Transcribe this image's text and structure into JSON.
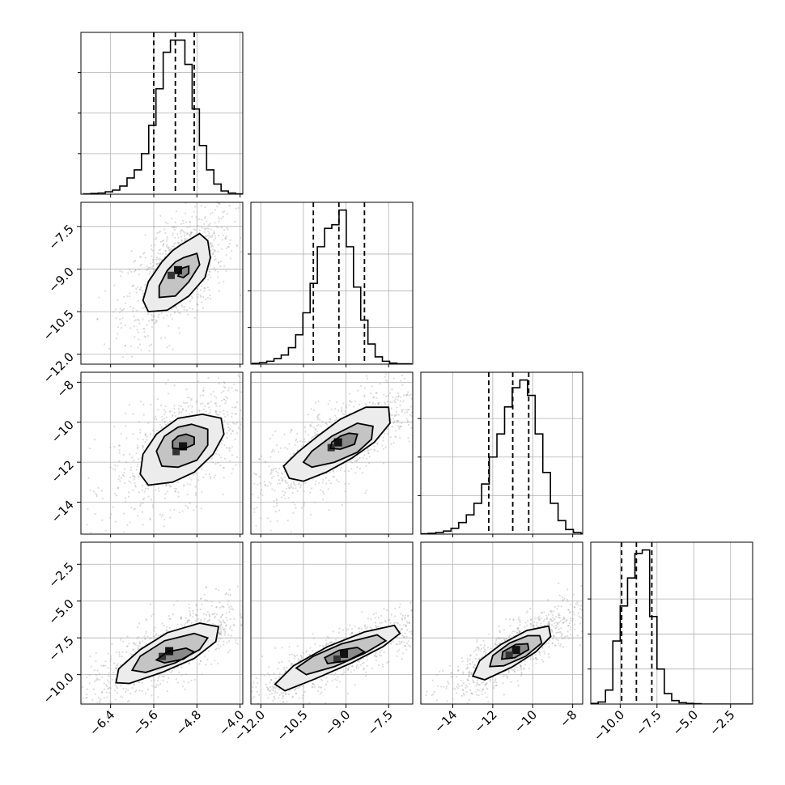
{
  "chart_data": {
    "type": "corner",
    "n_params": 4,
    "params": [
      {
        "median": -5.2,
        "q16": -5.6,
        "q84": -4.85,
        "hist_range": [
          -6.9,
          -3.95
        ],
        "plot_range": [
          -6.95,
          -3.95
        ],
        "scatter_range": [
          -6.95,
          -3.95
        ],
        "ticks": [
          -6.4,
          -5.6,
          -4.8,
          -4.0
        ],
        "tick_labels": [
          "−6.4",
          "−5.6",
          "−4.8",
          "−4.0"
        ]
      },
      {
        "median": -9.25,
        "q16": -10.15,
        "q84": -8.35,
        "hist_range": [
          -12.3,
          -6.7
        ],
        "plot_range": [
          -12.35,
          -6.65
        ],
        "scatter_range": [
          -12.2,
          -6.9
        ],
        "ticks": [
          -12.0,
          -10.5,
          -9.0,
          -7.5
        ],
        "tick_labels": [
          "−12.0",
          "−10.5",
          "−9.0",
          "−7.5"
        ]
      },
      {
        "median": -11.0,
        "q16": -12.2,
        "q84": -10.2,
        "hist_range": [
          -16.0,
          -7.2
        ],
        "plot_range": [
          -15.6,
          -7.5
        ],
        "scatter_range": [
          -15.3,
          -7.9
        ],
        "ticks": [
          -14,
          -12,
          -10,
          -8
        ],
        "tick_labels": [
          "−14",
          "−12",
          "−10",
          "−8"
        ]
      },
      {
        "median": -8.9,
        "q16": -9.9,
        "q84": -7.85,
        "hist_range": [
          -12.0,
          -1.0
        ],
        "plot_range": [
          -12.0,
          -1.0
        ],
        "scatter_range": [
          -11.9,
          -0.3
        ],
        "ticks": [
          -10.0,
          -7.5,
          -5.0,
          -2.5
        ],
        "tick_labels": [
          "−10.0",
          "−7.5",
          "−5.0",
          "−2.5"
        ]
      }
    ],
    "histograms": [
      [
        1,
        2,
        3,
        6,
        10,
        20,
        40,
        60,
        100,
        170,
        260,
        350,
        380,
        380,
        320,
        210,
        120,
        60,
        25,
        8,
        3,
        1
      ],
      [
        2,
        4,
        8,
        15,
        25,
        45,
        80,
        140,
        220,
        320,
        370,
        380,
        420,
        320,
        210,
        120,
        55,
        20,
        8,
        3,
        1,
        1
      ],
      [
        1,
        1,
        2,
        4,
        8,
        15,
        30,
        50,
        80,
        130,
        200,
        260,
        330,
        380,
        400,
        360,
        260,
        160,
        80,
        35,
        12,
        4,
        1
      ],
      [
        2,
        6,
        40,
        180,
        280,
        360,
        430,
        440,
        250,
        100,
        30,
        10,
        4,
        2,
        1,
        0,
        0,
        0,
        0,
        0,
        0,
        0
      ]
    ],
    "hist_density_ticks": [
      100,
      200,
      300
    ],
    "pairs": [
      {
        "row": 1,
        "col": 0,
        "contours": [
          [
            [
              -5.1,
              -8.15
            ],
            [
              -4.75,
              -7.75
            ],
            [
              -4.6,
              -8.0
            ],
            [
              -4.55,
              -8.6
            ],
            [
              -4.65,
              -9.3
            ],
            [
              -4.95,
              -9.95
            ],
            [
              -5.35,
              -10.45
            ],
            [
              -5.7,
              -10.5
            ],
            [
              -5.8,
              -10.1
            ],
            [
              -5.7,
              -9.45
            ],
            [
              -5.45,
              -8.75
            ],
            [
              -5.25,
              -8.35
            ],
            [
              -5.1,
              -8.15
            ]
          ],
          [
            [
              -5.05,
              -8.6
            ],
            [
              -4.8,
              -8.45
            ],
            [
              -4.75,
              -8.85
            ],
            [
              -4.95,
              -9.45
            ],
            [
              -5.2,
              -9.95
            ],
            [
              -5.5,
              -10.0
            ],
            [
              -5.5,
              -9.6
            ],
            [
              -5.35,
              -9.05
            ],
            [
              -5.2,
              -8.75
            ],
            [
              -5.05,
              -8.6
            ]
          ],
          [
            [
              -5.05,
              -8.95
            ],
            [
              -4.95,
              -8.9
            ],
            [
              -4.95,
              -9.15
            ],
            [
              -5.05,
              -9.3
            ],
            [
              -5.15,
              -9.25
            ],
            [
              -5.1,
              -9.0
            ],
            [
              -5.05,
              -8.95
            ]
          ]
        ]
      },
      {
        "row": 2,
        "col": 0,
        "contours": [
          [
            [
              -4.7,
              -9.6
            ],
            [
              -4.35,
              -9.8
            ],
            [
              -4.3,
              -10.6
            ],
            [
              -4.5,
              -11.6
            ],
            [
              -4.85,
              -12.5
            ],
            [
              -5.25,
              -13.0
            ],
            [
              -5.7,
              -13.15
            ],
            [
              -5.85,
              -12.6
            ],
            [
              -5.8,
              -11.6
            ],
            [
              -5.55,
              -10.6
            ],
            [
              -5.15,
              -9.8
            ],
            [
              -4.7,
              -9.6
            ]
          ],
          [
            [
              -4.9,
              -10.1
            ],
            [
              -4.6,
              -10.35
            ],
            [
              -4.6,
              -11.15
            ],
            [
              -4.8,
              -11.9
            ],
            [
              -5.15,
              -12.25
            ],
            [
              -5.45,
              -12.2
            ],
            [
              -5.55,
              -11.45
            ],
            [
              -5.4,
              -10.7
            ],
            [
              -5.15,
              -10.25
            ],
            [
              -4.9,
              -10.1
            ]
          ],
          [
            [
              -5.0,
              -10.6
            ],
            [
              -4.85,
              -10.75
            ],
            [
              -4.85,
              -11.1
            ],
            [
              -5.05,
              -11.35
            ],
            [
              -5.25,
              -11.3
            ],
            [
              -5.25,
              -10.95
            ],
            [
              -5.15,
              -10.7
            ],
            [
              -5.0,
              -10.6
            ]
          ]
        ]
      },
      {
        "row": 2,
        "col": 1,
        "contours": [
          [
            [
              -8.3,
              -9.25
            ],
            [
              -7.5,
              -9.25
            ],
            [
              -7.45,
              -10.05
            ],
            [
              -8.0,
              -11.0
            ],
            [
              -8.8,
              -11.8
            ],
            [
              -9.7,
              -12.5
            ],
            [
              -10.5,
              -12.95
            ],
            [
              -11.0,
              -12.8
            ],
            [
              -11.2,
              -12.2
            ],
            [
              -10.7,
              -11.5
            ],
            [
              -10.0,
              -10.7
            ],
            [
              -9.2,
              -9.85
            ],
            [
              -8.3,
              -9.25
            ]
          ],
          [
            [
              -8.6,
              -10.05
            ],
            [
              -8.05,
              -10.2
            ],
            [
              -8.1,
              -10.85
            ],
            [
              -8.6,
              -11.5
            ],
            [
              -9.4,
              -12.0
            ],
            [
              -10.2,
              -12.25
            ],
            [
              -10.5,
              -12.0
            ],
            [
              -10.2,
              -11.45
            ],
            [
              -9.5,
              -10.7
            ],
            [
              -8.6,
              -10.05
            ]
          ],
          [
            [
              -8.9,
              -10.55
            ],
            [
              -8.6,
              -10.6
            ],
            [
              -8.7,
              -11.1
            ],
            [
              -9.2,
              -11.35
            ],
            [
              -9.55,
              -11.3
            ],
            [
              -9.5,
              -11.0
            ],
            [
              -9.2,
              -10.7
            ],
            [
              -8.9,
              -10.55
            ]
          ]
        ]
      },
      {
        "row": 3,
        "col": 0,
        "contours": [
          [
            [
              -4.75,
              -6.5
            ],
            [
              -4.4,
              -6.75
            ],
            [
              -4.45,
              -7.75
            ],
            [
              -4.85,
              -8.9
            ],
            [
              -5.45,
              -9.85
            ],
            [
              -6.05,
              -10.6
            ],
            [
              -6.3,
              -10.55
            ],
            [
              -6.25,
              -9.6
            ],
            [
              -5.85,
              -8.3
            ],
            [
              -5.35,
              -7.15
            ],
            [
              -4.75,
              -6.5
            ]
          ],
          [
            [
              -4.85,
              -7.2
            ],
            [
              -4.6,
              -7.5
            ],
            [
              -4.75,
              -8.3
            ],
            [
              -5.2,
              -9.2
            ],
            [
              -5.75,
              -9.85
            ],
            [
              -6.0,
              -9.7
            ],
            [
              -5.85,
              -8.75
            ],
            [
              -5.4,
              -7.7
            ],
            [
              -4.85,
              -7.2
            ]
          ],
          [
            [
              -5.0,
              -8.2
            ],
            [
              -4.85,
              -8.45
            ],
            [
              -5.05,
              -8.95
            ],
            [
              -5.4,
              -9.2
            ],
            [
              -5.55,
              -9.0
            ],
            [
              -5.35,
              -8.45
            ],
            [
              -5.0,
              -8.2
            ]
          ]
        ]
      },
      {
        "row": 3,
        "col": 1,
        "contours": [
          [
            [
              -7.3,
              -6.65
            ],
            [
              -7.1,
              -7.2
            ],
            [
              -7.7,
              -8.1
            ],
            [
              -8.8,
              -9.2
            ],
            [
              -10.1,
              -10.3
            ],
            [
              -11.15,
              -11.1
            ],
            [
              -11.5,
              -10.65
            ],
            [
              -10.85,
              -9.4
            ],
            [
              -9.65,
              -8.1
            ],
            [
              -8.35,
              -7.1
            ],
            [
              -7.3,
              -6.65
            ]
          ],
          [
            [
              -7.9,
              -7.3
            ],
            [
              -7.6,
              -7.7
            ],
            [
              -8.35,
              -8.55
            ],
            [
              -9.4,
              -9.45
            ],
            [
              -10.4,
              -10.0
            ],
            [
              -10.75,
              -9.55
            ],
            [
              -10.15,
              -8.75
            ],
            [
              -9.15,
              -7.9
            ],
            [
              -7.9,
              -7.3
            ]
          ],
          [
            [
              -8.6,
              -8.15
            ],
            [
              -8.35,
              -8.45
            ],
            [
              -8.95,
              -9.05
            ],
            [
              -9.65,
              -9.25
            ],
            [
              -9.75,
              -8.85
            ],
            [
              -9.25,
              -8.35
            ],
            [
              -8.6,
              -8.15
            ]
          ]
        ]
      },
      {
        "row": 3,
        "col": 2,
        "contours": [
          [
            [
              -9.2,
              -6.7
            ],
            [
              -9.1,
              -7.4
            ],
            [
              -9.85,
              -8.45
            ],
            [
              -11.05,
              -9.5
            ],
            [
              -12.4,
              -10.35
            ],
            [
              -13.0,
              -10.1
            ],
            [
              -12.65,
              -9.05
            ],
            [
              -11.6,
              -7.95
            ],
            [
              -10.3,
              -7.0
            ],
            [
              -9.2,
              -6.7
            ]
          ],
          [
            [
              -9.65,
              -7.35
            ],
            [
              -9.55,
              -7.85
            ],
            [
              -10.35,
              -8.75
            ],
            [
              -11.45,
              -9.4
            ],
            [
              -12.15,
              -9.45
            ],
            [
              -12.0,
              -8.7
            ],
            [
              -11.15,
              -7.85
            ],
            [
              -10.25,
              -7.35
            ],
            [
              -9.65,
              -7.35
            ]
          ],
          [
            [
              -10.25,
              -7.9
            ],
            [
              -10.2,
              -8.3
            ],
            [
              -10.9,
              -8.85
            ],
            [
              -11.55,
              -8.95
            ],
            [
              -11.5,
              -8.45
            ],
            [
              -10.85,
              -7.95
            ],
            [
              -10.25,
              -7.9
            ]
          ]
        ]
      }
    ],
    "grid": true
  }
}
